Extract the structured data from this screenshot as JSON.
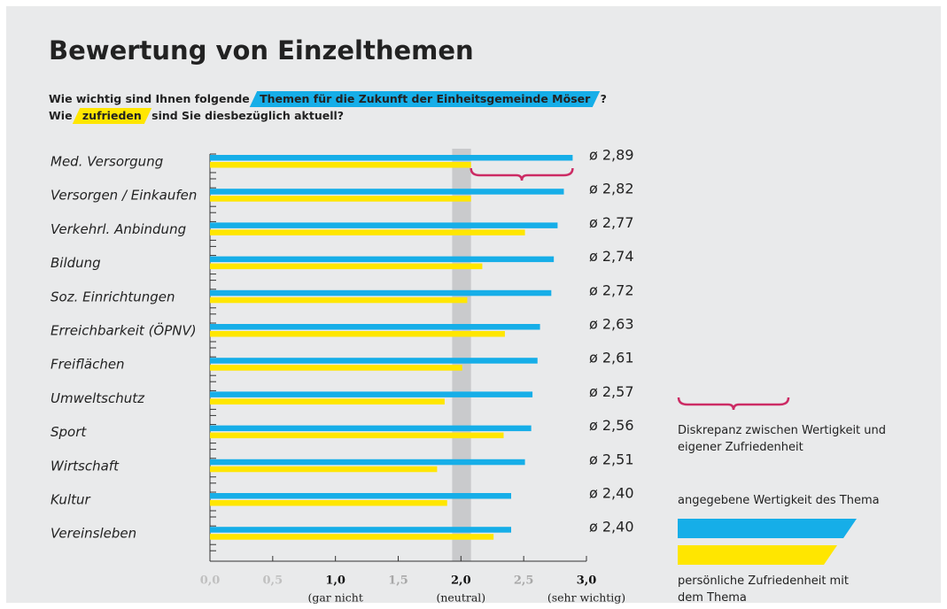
{
  "chart_data": {
    "type": "hbar",
    "title": "Bewertung von Einzelthemen",
    "subtitle": [
      [
        {
          "text": "Wie wichtig sind Ihnen folgende "
        },
        {
          "text": "Themen für die Zukunft der Einheitsgemeinde Möser",
          "highlight": "#16aee8"
        },
        {
          "text": " ?"
        }
      ],
      [
        {
          "text": "Wie "
        },
        {
          "text": "zufrieden",
          "highlight": "#ffe600"
        },
        {
          "text": " sind Sie diesbezüglich aktuell?"
        }
      ]
    ],
    "categories": [
      "Med. Versorgung",
      "Versorgen / Einkaufen",
      "Verkehrl. Anbindung",
      "Bildung",
      "Soz. Einrichtungen",
      "Erreichbarkeit (ÖPNV)",
      "Freiflächen",
      "Umweltschutz",
      "Sport",
      "Wirtschaft",
      "Kultur",
      "Vereinsleben"
    ],
    "series": [
      {
        "name": "angegebene Wertigkeit des Thema",
        "color": "#16aee8",
        "values": [
          2.89,
          2.82,
          2.77,
          2.74,
          2.72,
          2.63,
          2.61,
          2.57,
          2.56,
          2.51,
          2.4,
          2.4
        ],
        "value_labels": [
          "ø 2,89",
          "ø 2,82",
          "ø 2,77",
          "ø 2,74",
          "ø 2,72",
          "ø 2,63",
          "ø 2,61",
          "ø 2,57",
          "ø 2,56",
          "ø 2,51",
          "ø 2,40",
          "ø 2,40"
        ]
      },
      {
        "name": "persönliche Zufriedenheit mit dem Thema",
        "color": "#ffe600",
        "values": [
          2.08,
          2.08,
          2.51,
          2.17,
          2.05,
          2.35,
          2.01,
          1.87,
          2.34,
          1.81,
          1.89,
          2.26
        ]
      }
    ],
    "xlim": [
      0,
      3
    ],
    "xticks": [
      {
        "value": 0,
        "label": "0,0"
      },
      {
        "value": 0.5,
        "label": "0,5"
      },
      {
        "value": 1,
        "label": "1,0"
      },
      {
        "value": 1.5,
        "label": "1,5"
      },
      {
        "value": 2,
        "label": "2,0"
      },
      {
        "value": 2.5,
        "label": "2,5"
      },
      {
        "value": 3,
        "label": "3,0"
      }
    ],
    "xtick_annotations": [
      {
        "x": 1,
        "text": "(gar nicht"
      },
      {
        "x": 2,
        "text": "(neutral)"
      },
      {
        "x": 3,
        "text": "(sehr wichtig)"
      }
    ],
    "neutral_band": [
      1.93,
      2.08
    ],
    "discrepancy_legend": "Diskrepanz zwischen Wertigkeit und eigener Zufriedenheit",
    "discrepancy_color": "#cc2b64"
  }
}
